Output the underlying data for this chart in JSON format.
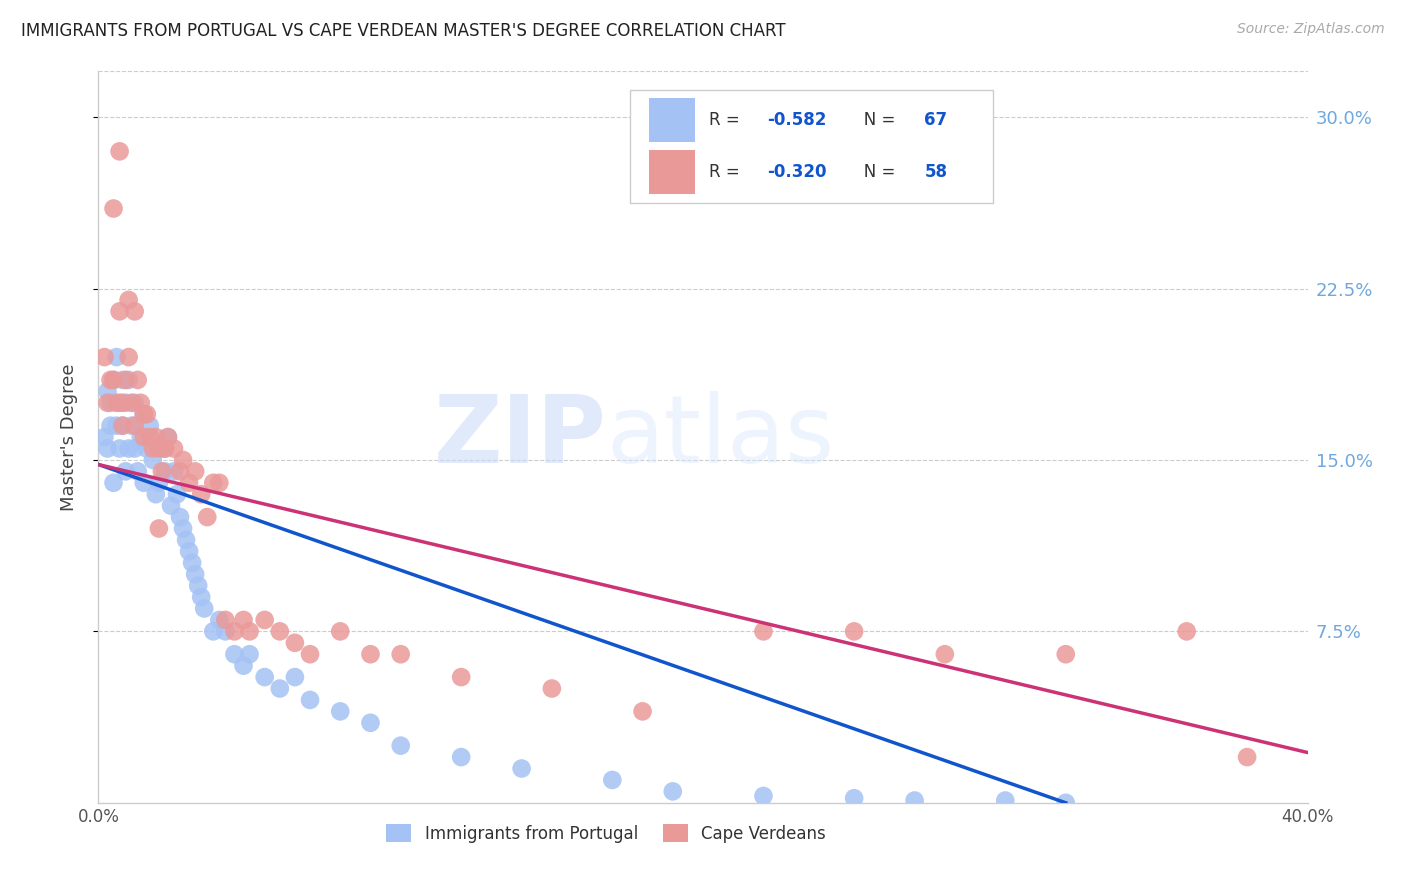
{
  "title": "IMMIGRANTS FROM PORTUGAL VS CAPE VERDEAN MASTER'S DEGREE CORRELATION CHART",
  "source": "Source: ZipAtlas.com",
  "ylabel": "Master's Degree",
  "xlim": [
    0.0,
    0.4
  ],
  "ylim": [
    0.0,
    0.32
  ],
  "ytick_vals": [
    0.075,
    0.15,
    0.225,
    0.3
  ],
  "ytick_labels": [
    "7.5%",
    "15.0%",
    "22.5%",
    "30.0%"
  ],
  "xtick_vals": [
    0.0,
    0.1,
    0.2,
    0.3,
    0.4
  ],
  "xtick_labels": [
    "0.0%",
    "",
    "",
    "",
    "40.0%"
  ],
  "color_blue": "#a4c2f4",
  "color_pink": "#ea9999",
  "color_blue_line": "#1155cc",
  "color_pink_line": "#cc3377",
  "color_right_axis": "#6fa8dc",
  "watermark_zip": "ZIP",
  "watermark_atlas": "atlas",
  "legend_R1": "-0.582",
  "legend_N1": "67",
  "legend_R2": "-0.320",
  "legend_N2": "58",
  "blue_line_x0": 0.0,
  "blue_line_y0": 0.148,
  "blue_line_x1": 0.32,
  "blue_line_y1": 0.0,
  "pink_line_x0": 0.0,
  "pink_line_y0": 0.148,
  "pink_line_x1": 0.4,
  "pink_line_y1": 0.022,
  "blue_x": [
    0.002,
    0.003,
    0.003,
    0.004,
    0.004,
    0.005,
    0.005,
    0.006,
    0.006,
    0.007,
    0.007,
    0.008,
    0.008,
    0.009,
    0.009,
    0.01,
    0.01,
    0.011,
    0.012,
    0.012,
    0.013,
    0.014,
    0.015,
    0.015,
    0.016,
    0.017,
    0.018,
    0.019,
    0.02,
    0.021,
    0.022,
    0.022,
    0.023,
    0.024,
    0.025,
    0.026,
    0.027,
    0.028,
    0.029,
    0.03,
    0.031,
    0.032,
    0.033,
    0.034,
    0.035,
    0.038,
    0.04,
    0.042,
    0.045,
    0.048,
    0.05,
    0.055,
    0.06,
    0.065,
    0.07,
    0.08,
    0.09,
    0.1,
    0.12,
    0.14,
    0.17,
    0.19,
    0.22,
    0.25,
    0.27,
    0.3,
    0.32
  ],
  "blue_y": [
    0.16,
    0.18,
    0.155,
    0.165,
    0.175,
    0.185,
    0.14,
    0.195,
    0.165,
    0.175,
    0.155,
    0.165,
    0.185,
    0.175,
    0.145,
    0.185,
    0.155,
    0.165,
    0.175,
    0.155,
    0.145,
    0.16,
    0.17,
    0.14,
    0.155,
    0.165,
    0.15,
    0.135,
    0.14,
    0.155,
    0.155,
    0.145,
    0.16,
    0.13,
    0.145,
    0.135,
    0.125,
    0.12,
    0.115,
    0.11,
    0.105,
    0.1,
    0.095,
    0.09,
    0.085,
    0.075,
    0.08,
    0.075,
    0.065,
    0.06,
    0.065,
    0.055,
    0.05,
    0.055,
    0.045,
    0.04,
    0.035,
    0.025,
    0.02,
    0.015,
    0.01,
    0.005,
    0.003,
    0.002,
    0.001,
    0.001,
    0.0
  ],
  "pink_x": [
    0.002,
    0.003,
    0.004,
    0.005,
    0.005,
    0.006,
    0.007,
    0.008,
    0.008,
    0.009,
    0.01,
    0.011,
    0.012,
    0.012,
    0.013,
    0.014,
    0.015,
    0.016,
    0.017,
    0.018,
    0.019,
    0.02,
    0.021,
    0.022,
    0.023,
    0.025,
    0.027,
    0.028,
    0.03,
    0.032,
    0.034,
    0.036,
    0.038,
    0.04,
    0.042,
    0.045,
    0.048,
    0.05,
    0.055,
    0.06,
    0.065,
    0.07,
    0.08,
    0.09,
    0.1,
    0.12,
    0.15,
    0.18,
    0.22,
    0.25,
    0.28,
    0.32,
    0.36,
    0.38,
    0.007,
    0.01,
    0.015,
    0.02
  ],
  "pink_y": [
    0.195,
    0.175,
    0.185,
    0.26,
    0.185,
    0.175,
    0.215,
    0.175,
    0.165,
    0.185,
    0.195,
    0.175,
    0.215,
    0.165,
    0.185,
    0.175,
    0.16,
    0.17,
    0.16,
    0.155,
    0.16,
    0.155,
    0.145,
    0.155,
    0.16,
    0.155,
    0.145,
    0.15,
    0.14,
    0.145,
    0.135,
    0.125,
    0.14,
    0.14,
    0.08,
    0.075,
    0.08,
    0.075,
    0.08,
    0.075,
    0.07,
    0.065,
    0.075,
    0.065,
    0.065,
    0.055,
    0.05,
    0.04,
    0.075,
    0.075,
    0.065,
    0.065,
    0.075,
    0.02,
    0.285,
    0.22,
    0.17,
    0.12
  ]
}
